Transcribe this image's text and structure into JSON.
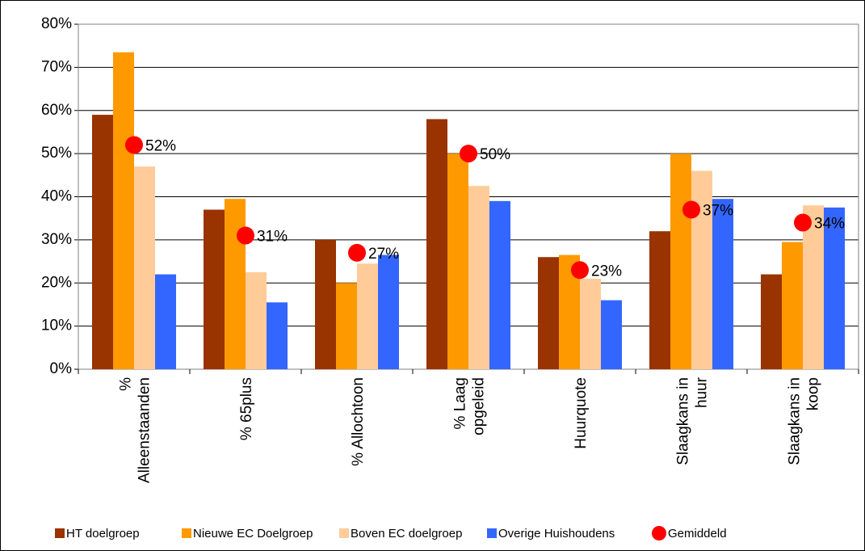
{
  "chart_data": {
    "type": "bar",
    "categories": [
      [
        "%",
        "Alleenstaanden"
      ],
      [
        "% 65plus"
      ],
      [
        "% Allochtoon"
      ],
      [
        "% Laag",
        "opgeleid"
      ],
      [
        "Huurquote"
      ],
      [
        "Slaagkans in",
        "huur"
      ],
      [
        "Slaagkans in",
        "koop"
      ]
    ],
    "series": [
      {
        "name": "HT doelgroep",
        "color": "#993300",
        "values": [
          59,
          37,
          30,
          58,
          26,
          32,
          22
        ]
      },
      {
        "name": "Nieuwe EC Doelgroep",
        "color": "#ff9900",
        "values": [
          73.5,
          39.5,
          20,
          50,
          26.5,
          50,
          29.5
        ]
      },
      {
        "name": "Boven EC doelgroep",
        "color": "#ffcc99",
        "values": [
          47,
          22.5,
          24.5,
          42.5,
          21,
          46,
          38
        ]
      },
      {
        "name": "Overige Huishoudens",
        "color": "#3366ff",
        "values": [
          22,
          15.5,
          26.5,
          39,
          16,
          39.5,
          37.5
        ]
      },
      {
        "name": "Gemiddeld",
        "color": "#ff0000",
        "type": "scatter",
        "values": [
          52,
          31,
          27,
          50,
          23,
          37,
          34
        ],
        "value_labels": [
          "52%",
          "31%",
          "27%",
          "50%",
          "23%",
          "37%",
          "34%"
        ]
      }
    ],
    "ylim": [
      0,
      80
    ],
    "yticks": [
      {
        "value": 0,
        "label": "0%"
      },
      {
        "value": 10,
        "label": "10%"
      },
      {
        "value": 20,
        "label": "20%"
      },
      {
        "value": 30,
        "label": "30%"
      },
      {
        "value": 40,
        "label": "40%"
      },
      {
        "value": 50,
        "label": "50%"
      },
      {
        "value": 60,
        "label": "60%"
      },
      {
        "value": 70,
        "label": "70%"
      },
      {
        "value": 80,
        "label": "80%"
      }
    ],
    "grid": true,
    "legend": "bottom"
  }
}
